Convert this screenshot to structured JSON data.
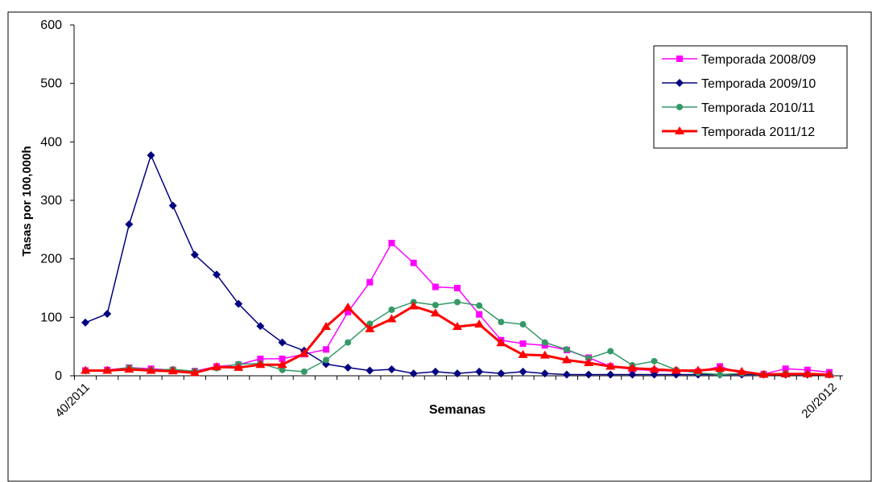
{
  "chart_data": {
    "type": "line",
    "title": "",
    "xlabel": "Semanas",
    "ylabel": "Tasas por 100,000h",
    "ylim": [
      0,
      600
    ],
    "yticks": [
      0,
      100,
      200,
      300,
      400,
      500,
      600
    ],
    "x_tick_labels": {
      "first": "40/2011",
      "last": "20/2012"
    },
    "grid": false,
    "legend_position": "top-right",
    "series": [
      {
        "name": "Temporada 2008/09",
        "color": "#ff00ff",
        "marker": "square",
        "values": [
          9,
          10,
          14,
          12,
          10,
          8,
          16,
          19,
          29,
          29,
          37,
          45,
          109,
          160,
          227,
          193,
          152,
          150,
          105,
          61,
          55,
          52,
          44,
          31,
          16,
          11,
          9,
          8,
          7,
          16,
          4,
          3,
          12,
          10,
          6
        ]
      },
      {
        "name": "Temporada 2009/10",
        "color": "#000080",
        "marker": "diamond",
        "values": [
          91,
          106,
          259,
          377,
          291,
          207,
          173,
          123,
          85,
          57,
          43,
          20,
          14,
          9,
          11,
          4,
          7,
          4,
          7,
          4,
          7,
          4,
          2,
          2,
          2,
          2,
          2,
          2,
          2,
          2,
          2,
          2,
          2,
          2,
          2
        ]
      },
      {
        "name": "Temporada 2010/11",
        "color": "#339966",
        "marker": "circle",
        "values": [
          8,
          9,
          14,
          10,
          11,
          8,
          13,
          20,
          21,
          10,
          7,
          27,
          57,
          89,
          113,
          126,
          121,
          126,
          120,
          92,
          88,
          57,
          45,
          30,
          42,
          18,
          25,
          10,
          5,
          2,
          4,
          3,
          4,
          3,
          2
        ]
      },
      {
        "name": "Temporada 2011/12",
        "color": "#ff0000",
        "marker": "triangle",
        "values": [
          9,
          9,
          11,
          9,
          8,
          5,
          15,
          14,
          19,
          19,
          38,
          84,
          117,
          80,
          97,
          119,
          107,
          84,
          88,
          56,
          36,
          35,
          27,
          22,
          16,
          13,
          11,
          9,
          9,
          12,
          7,
          2,
          3,
          3,
          2
        ]
      }
    ]
  }
}
